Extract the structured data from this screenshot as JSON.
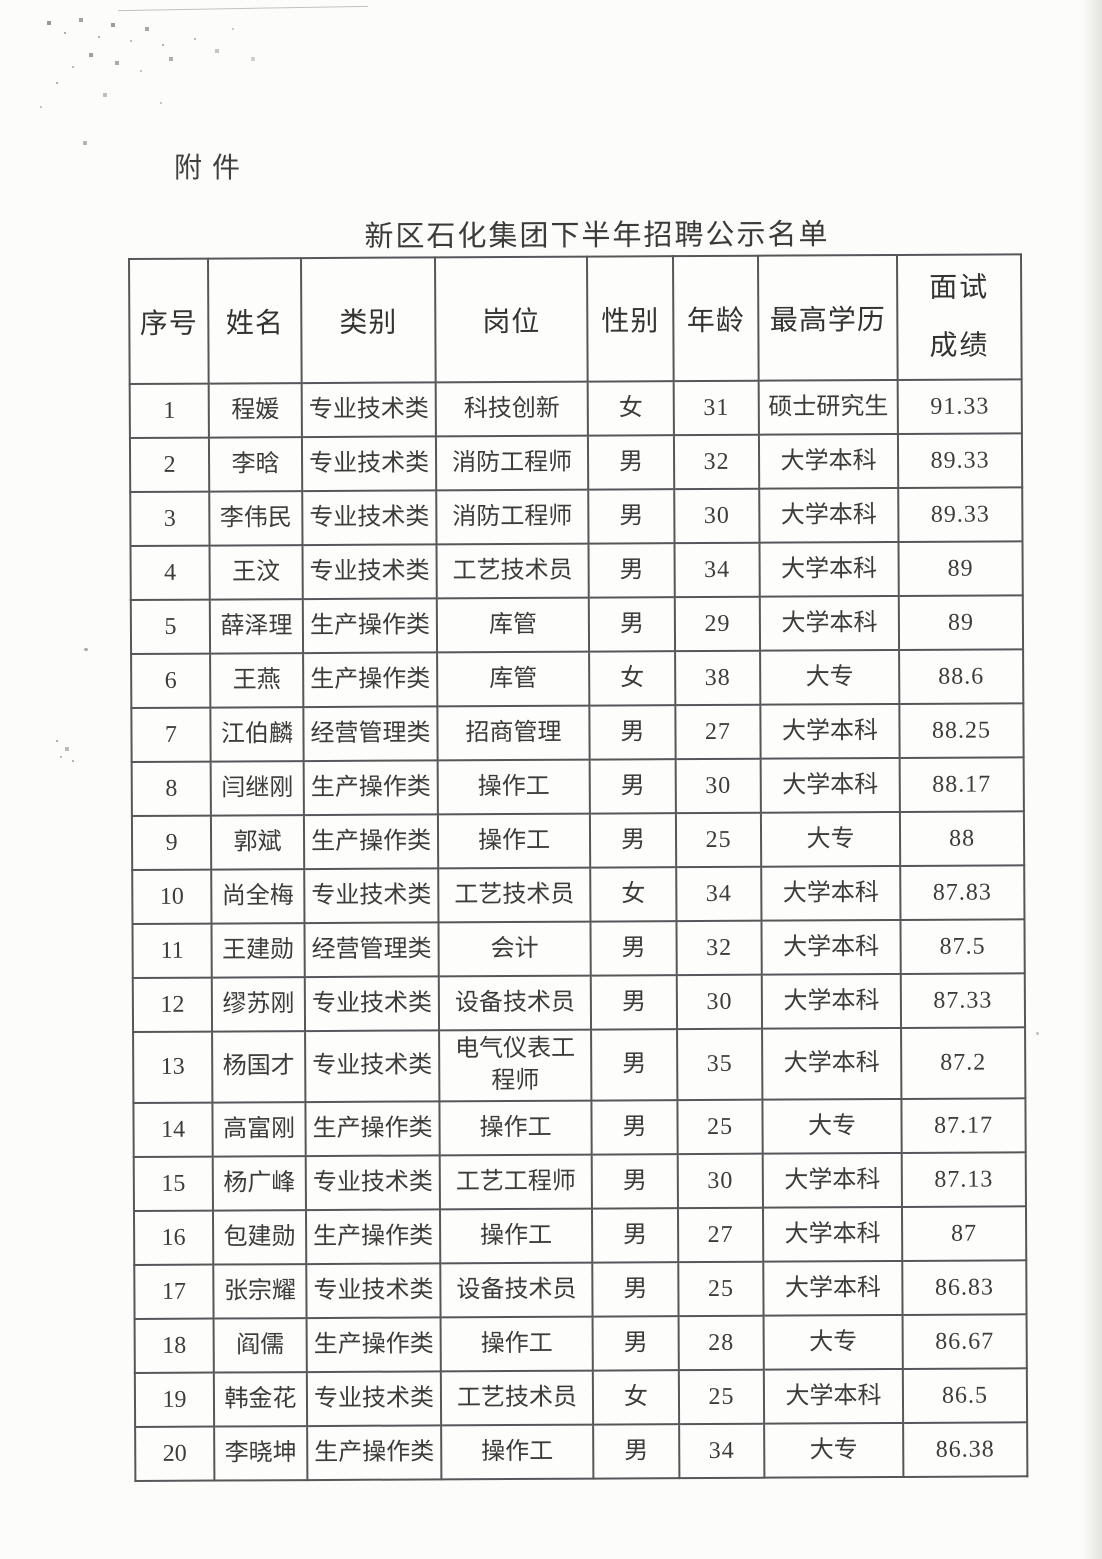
{
  "document": {
    "attachment_label": "附件",
    "title": "新区石化集团下半年招聘公示名单"
  },
  "table": {
    "headers": [
      "序号",
      "姓名",
      "类别",
      "岗位",
      "性别",
      "年龄",
      "最高学历",
      "面试成绩"
    ],
    "rows": [
      [
        "1",
        "程媛",
        "专业技术类",
        "科技创新",
        "女",
        "31",
        "硕士研究生",
        "91.33"
      ],
      [
        "2",
        "李晗",
        "专业技术类",
        "消防工程师",
        "男",
        "32",
        "大学本科",
        "89.33"
      ],
      [
        "3",
        "李伟民",
        "专业技术类",
        "消防工程师",
        "男",
        "30",
        "大学本科",
        "89.33"
      ],
      [
        "4",
        "王汶",
        "专业技术类",
        "工艺技术员",
        "男",
        "34",
        "大学本科",
        "89"
      ],
      [
        "5",
        "薛泽理",
        "生产操作类",
        "库管",
        "男",
        "29",
        "大学本科",
        "89"
      ],
      [
        "6",
        "王燕",
        "生产操作类",
        "库管",
        "女",
        "38",
        "大专",
        "88.6"
      ],
      [
        "7",
        "江伯麟",
        "经营管理类",
        "招商管理",
        "男",
        "27",
        "大学本科",
        "88.25"
      ],
      [
        "8",
        "闫继刚",
        "生产操作类",
        "操作工",
        "男",
        "30",
        "大学本科",
        "88.17"
      ],
      [
        "9",
        "郭斌",
        "生产操作类",
        "操作工",
        "男",
        "25",
        "大专",
        "88"
      ],
      [
        "10",
        "尚全梅",
        "专业技术类",
        "工艺技术员",
        "女",
        "34",
        "大学本科",
        "87.83"
      ],
      [
        "11",
        "王建勋",
        "经营管理类",
        "会计",
        "男",
        "32",
        "大学本科",
        "87.5"
      ],
      [
        "12",
        "缪苏刚",
        "专业技术类",
        "设备技术员",
        "男",
        "30",
        "大学本科",
        "87.33"
      ],
      [
        "13",
        "杨国才",
        "专业技术类",
        "电气仪表工程师",
        "男",
        "35",
        "大学本科",
        "87.2"
      ],
      [
        "14",
        "高富刚",
        "生产操作类",
        "操作工",
        "男",
        "25",
        "大专",
        "87.17"
      ],
      [
        "15",
        "杨广峰",
        "专业技术类",
        "工艺工程师",
        "男",
        "30",
        "大学本科",
        "87.13"
      ],
      [
        "16",
        "包建勋",
        "生产操作类",
        "操作工",
        "男",
        "27",
        "大学本科",
        "87"
      ],
      [
        "17",
        "张宗耀",
        "专业技术类",
        "设备技术员",
        "男",
        "25",
        "大学本科",
        "86.83"
      ],
      [
        "18",
        "阎儒",
        "生产操作类",
        "操作工",
        "男",
        "28",
        "大专",
        "86.67"
      ],
      [
        "19",
        "韩金花",
        "专业技术类",
        "工艺技术员",
        "女",
        "25",
        "大学本科",
        "86.5"
      ],
      [
        "20",
        "李晓坤",
        "生产操作类",
        "操作工",
        "男",
        "34",
        "大专",
        "86.38"
      ]
    ]
  },
  "colors": {
    "paper": "#fcfcfa",
    "ink": "#3a3a3a",
    "table_border": "#57575a"
  }
}
